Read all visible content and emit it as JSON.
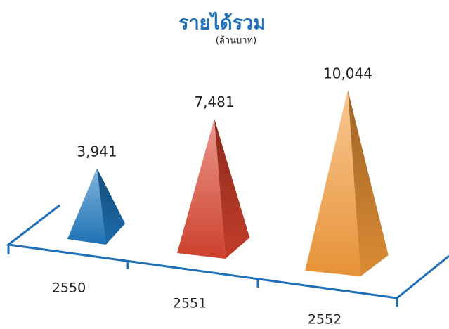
{
  "chart_data": {
    "type": "pyramid",
    "title": "รายได้รวม",
    "subtitle": "(ล้านบาท)",
    "categories": [
      "2550",
      "2551",
      "2552"
    ],
    "values": [
      3941,
      7481,
      10044
    ],
    "value_labels": [
      "3,941",
      "7,481",
      "10,044"
    ],
    "colors": [
      "#1f77bd",
      "#d8432e",
      "#f39a3a"
    ]
  }
}
